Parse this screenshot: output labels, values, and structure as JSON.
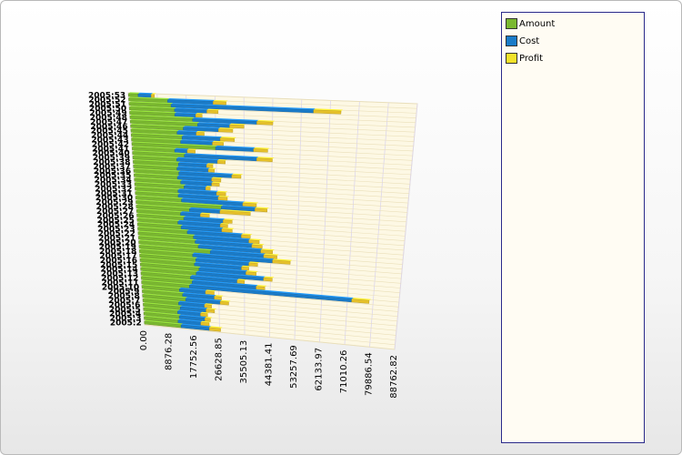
{
  "chart_data": {
    "type": "bar",
    "orientation": "horizontal",
    "stacked": true,
    "projection": "3d",
    "grid": true,
    "legend_position": "right",
    "categories": [
      "2005:2",
      "2005:3",
      "2005:4",
      "2005:5",
      "2005:6",
      "2005:7",
      "2005:8",
      "2005:9",
      "2005:10",
      "2005:11",
      "2005:12",
      "2005:13",
      "2005:14",
      "2005:15",
      "2005:16",
      "2005:17",
      "2005:18",
      "2005:19",
      "2005:20",
      "2005:21",
      "2005:22",
      "2005:23",
      "2005:24",
      "2005:25",
      "2005:26",
      "2005:27",
      "2005:28",
      "2005:29",
      "2005:30",
      "2005:31",
      "2005:32",
      "2005:33",
      "2005:34",
      "2005:35",
      "2005:36",
      "2005:37",
      "2005:38",
      "2005:39",
      "2005:40",
      "2005:41",
      "2005:42",
      "2005:43",
      "2005:44",
      "2005:45",
      "2005:46",
      "2005:47",
      "2005:48",
      "2005:49",
      "2005:50",
      "2005:51",
      "2005:52",
      "2005:53"
    ],
    "tick_labels": [
      "0.00",
      "8876.28",
      "17752.56",
      "26628.85",
      "35505.13",
      "44381.41",
      "53257.69",
      "62133.97",
      "71010.26",
      "79886.54",
      "88762.82"
    ],
    "xlim": [
      0,
      88762.82
    ],
    "series": [
      {
        "name": "Amount",
        "color": "#7ab830",
        "values": [
          13000,
          12000,
          12500,
          12000,
          13000,
          12500,
          15000,
          14000,
          13000,
          16500,
          17500,
          17000,
          19000,
          20000,
          18500,
          19000,
          18000,
          24000,
          20000,
          19000,
          18500,
          16500,
          14500,
          13500,
          15500,
          14500,
          17500,
          28000,
          15000,
          14000,
          14000,
          16000,
          15000,
          14000,
          14500,
          14000,
          14500,
          14000,
          16500,
          13500,
          26500,
          15500,
          16000,
          14500,
          16500,
          21000,
          19500,
          14000,
          14000,
          13000,
          12000,
          3000
        ]
      },
      {
        "name": "Cost",
        "color": "#1a7bc8",
        "values": [
          10000,
          8000,
          9000,
          8000,
          9000,
          9000,
          12000,
          11000,
          9000,
          56000,
          22000,
          16000,
          23000,
          16000,
          16000,
          18000,
          27000,
          18000,
          21000,
          19000,
          18500,
          18000,
          13500,
          14000,
          13000,
          6500,
          10000,
          11000,
          20000,
          13000,
          12500,
          7000,
          10000,
          11000,
          17000,
          10000,
          9000,
          13000,
          23000,
          4000,
          12000,
          10000,
          12000,
          6000,
          11000,
          10000,
          20000,
          6500,
          10000,
          44000,
          14000,
          4000
        ]
      },
      {
        "name": "Profit",
        "color": "#e6c12a",
        "values": [
          4000,
          3000,
          2000,
          2500,
          3000,
          2500,
          3000,
          2500,
          3000,
          6000,
          3000,
          2500,
          3000,
          3500,
          2500,
          3000,
          6000,
          4500,
          4000,
          3500,
          3500,
          3000,
          3500,
          2500,
          3000,
          3000,
          10000,
          4000,
          4500,
          3000,
          3000,
          1500,
          2500,
          3000,
          3000,
          2000,
          2000,
          2500,
          5000,
          2500,
          4500,
          3500,
          4500,
          2500,
          4500,
          4500,
          5000,
          2000,
          3500,
          8500,
          4000,
          1000
        ]
      }
    ]
  },
  "legend": {
    "items": [
      {
        "label": "Amount",
        "color": "#7ab830"
      },
      {
        "label": "Cost",
        "color": "#1a7bc8"
      },
      {
        "label": "Profit",
        "color": "#f2e22a"
      }
    ]
  }
}
